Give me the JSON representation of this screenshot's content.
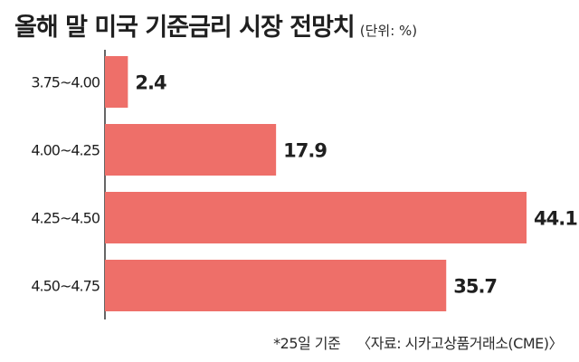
{
  "title": "올해 말 미국 기준금리 시장 전망치",
  "unit": "(단위: %)",
  "footnote": {
    "left": "*25일 기준",
    "right": "〈자료: 시카고상품거래소(CME)〉"
  },
  "colors": {
    "bar": "#ee6f69",
    "axis": "#333333",
    "text": "#1f1f1f"
  },
  "chart_data": {
    "type": "bar",
    "orientation": "horizontal",
    "categories": [
      "3.75~4.00",
      "4.00~4.25",
      "4.25~4.50",
      "4.50~4.75"
    ],
    "values": [
      2.4,
      17.9,
      44.1,
      35.7
    ],
    "value_labels": [
      "2.4",
      "17.9",
      "44.1",
      "35.7"
    ],
    "title": "올해 말 미국 기준금리 시장 전망치",
    "xlim": [
      0,
      44.1
    ],
    "grid": false,
    "legend": "none"
  }
}
